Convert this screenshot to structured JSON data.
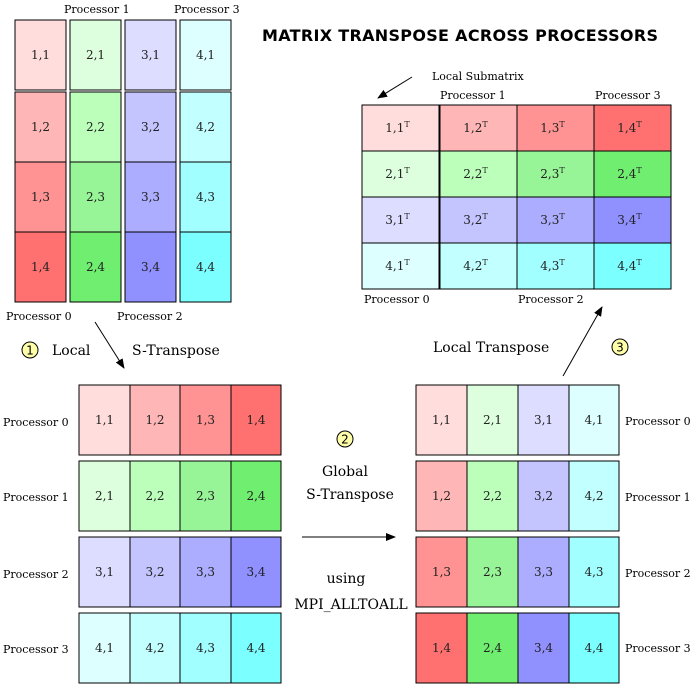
{
  "title": "MATRIX TRANSPOSE ACROSS PROCESSORS",
  "colors": {
    "p0": [
      "#ffdddd",
      "#ffb6b6",
      "#ff9393",
      "#ff7070"
    ],
    "p1": [
      "#ddffdd",
      "#bbffbb",
      "#97f497",
      "#70ee70"
    ],
    "p2": [
      "#ddddff",
      "#c4c4ff",
      "#adadff",
      "#9090ff"
    ],
    "p3": [
      "#ddffff",
      "#c2ffff",
      "#a2ffff",
      "#7cffff"
    ],
    "badge": "#ffffaa",
    "border": "#000000"
  },
  "cells": {
    "p0": [
      "1,1",
      "1,2",
      "1,3",
      "1,4"
    ],
    "p1": [
      "2,1",
      "2,2",
      "2,3",
      "2,4"
    ],
    "p2": [
      "3,1",
      "3,2",
      "3,3",
      "3,4"
    ],
    "p3": [
      "4,1",
      "4,2",
      "4,3",
      "4,4"
    ]
  },
  "transpose_mark": "T",
  "processors": [
    "Processor 0",
    "Processor 1",
    "Processor 2",
    "Processor 3"
  ],
  "steps": {
    "step1": {
      "number": "1",
      "label_a": "Local",
      "label_b": "S-Transpose"
    },
    "step2": {
      "number": "2",
      "line1": "Global",
      "line2": "S-Transpose",
      "line3": "using",
      "line4": "MPI_ALLTOALL"
    },
    "step3": {
      "number": "3",
      "label": "Local Transpose"
    }
  },
  "local_submatrix_label": "Local Submatrix"
}
